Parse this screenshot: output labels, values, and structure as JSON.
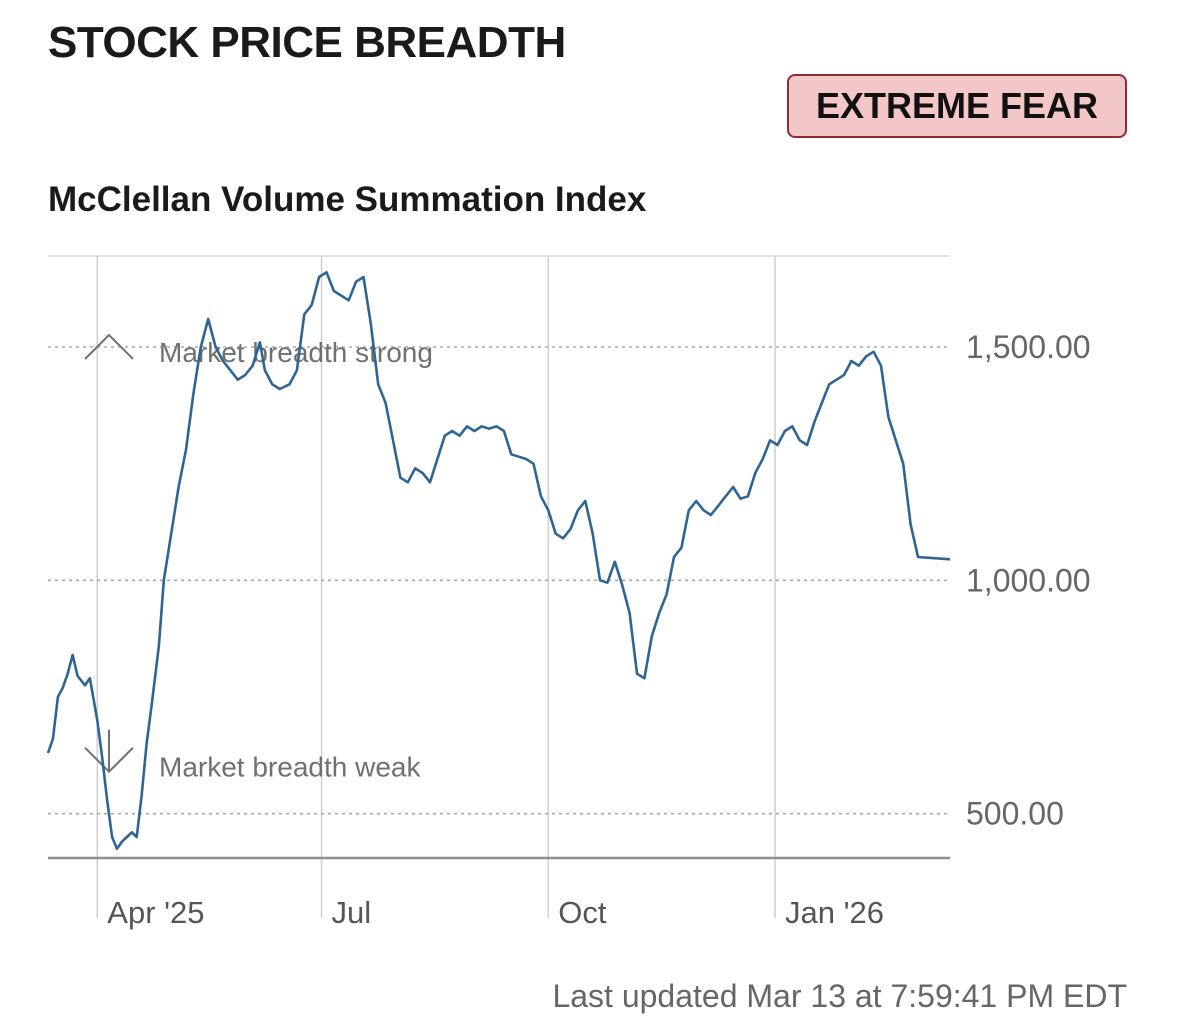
{
  "header": {
    "title": "STOCK PRICE BREADTH",
    "rating": "EXTREME FEAR",
    "rating_colors": {
      "bg": "#f3c7c7",
      "border": "#8e2b35"
    }
  },
  "chart_data": {
    "type": "line",
    "title": "McClellan Volume Summation Index",
    "xlabel": "",
    "ylabel": "",
    "x_tick_labels": [
      "Apr '25",
      "Jul",
      "Oct",
      "Jan '26"
    ],
    "x_tick_dates": [
      "2025-04-01",
      "2025-07-01",
      "2025-10-01",
      "2026-01-01"
    ],
    "y_ticks": [
      500,
      1000,
      1500
    ],
    "y_tick_labels": [
      "500.00",
      "1,000.00",
      "1,500.00"
    ],
    "xlim": [
      "2025-03-12",
      "2026-03-13"
    ],
    "ylim": [
      405,
      1695
    ],
    "grid": true,
    "annotations": [
      {
        "text": "Market breadth strong",
        "icon": "chevron-up-icon",
        "y": 1500
      },
      {
        "text": "Market breadth weak",
        "icon": "chevron-down-icon",
        "y": 500
      }
    ],
    "series": [
      {
        "color": "#2f6593",
        "points": [
          [
            "2025-03-12",
            630
          ],
          [
            "2025-03-14",
            660
          ],
          [
            "2025-03-16",
            750
          ],
          [
            "2025-03-18",
            770
          ],
          [
            "2025-03-20",
            800
          ],
          [
            "2025-03-22",
            840
          ],
          [
            "2025-03-24",
            795
          ],
          [
            "2025-03-27",
            775
          ],
          [
            "2025-03-29",
            790
          ],
          [
            "2025-04-01",
            700
          ],
          [
            "2025-04-03",
            620
          ],
          [
            "2025-04-05",
            530
          ],
          [
            "2025-04-07",
            450
          ],
          [
            "2025-04-09",
            425
          ],
          [
            "2025-04-11",
            440
          ],
          [
            "2025-04-13",
            450
          ],
          [
            "2025-04-15",
            460
          ],
          [
            "2025-04-17",
            450
          ],
          [
            "2025-04-19",
            540
          ],
          [
            "2025-04-21",
            650
          ],
          [
            "2025-04-23",
            730
          ],
          [
            "2025-04-26",
            860
          ],
          [
            "2025-04-28",
            1000
          ],
          [
            "2025-05-01",
            1100
          ],
          [
            "2025-05-04",
            1200
          ],
          [
            "2025-05-07",
            1280
          ],
          [
            "2025-05-10",
            1400
          ],
          [
            "2025-05-13",
            1500
          ],
          [
            "2025-05-16",
            1560
          ],
          [
            "2025-05-19",
            1500
          ],
          [
            "2025-05-22",
            1470
          ],
          [
            "2025-05-25",
            1450
          ],
          [
            "2025-05-28",
            1430
          ],
          [
            "2025-05-31",
            1440
          ],
          [
            "2025-06-03",
            1460
          ],
          [
            "2025-06-06",
            1510
          ],
          [
            "2025-06-08",
            1450
          ],
          [
            "2025-06-11",
            1420
          ],
          [
            "2025-06-14",
            1410
          ],
          [
            "2025-06-18",
            1420
          ],
          [
            "2025-06-21",
            1450
          ],
          [
            "2025-06-24",
            1570
          ],
          [
            "2025-06-27",
            1590
          ],
          [
            "2025-06-30",
            1650
          ],
          [
            "2025-07-03",
            1660
          ],
          [
            "2025-07-06",
            1620
          ],
          [
            "2025-07-09",
            1610
          ],
          [
            "2025-07-12",
            1600
          ],
          [
            "2025-07-15",
            1640
          ],
          [
            "2025-07-18",
            1650
          ],
          [
            "2025-07-21",
            1550
          ],
          [
            "2025-07-24",
            1420
          ],
          [
            "2025-07-27",
            1380
          ],
          [
            "2025-07-30",
            1300
          ],
          [
            "2025-08-02",
            1220
          ],
          [
            "2025-08-05",
            1210
          ],
          [
            "2025-08-08",
            1240
          ],
          [
            "2025-08-11",
            1230
          ],
          [
            "2025-08-14",
            1210
          ],
          [
            "2025-08-17",
            1260
          ],
          [
            "2025-08-20",
            1310
          ],
          [
            "2025-08-23",
            1320
          ],
          [
            "2025-08-26",
            1310
          ],
          [
            "2025-08-29",
            1330
          ],
          [
            "2025-09-01",
            1320
          ],
          [
            "2025-09-04",
            1330
          ],
          [
            "2025-09-07",
            1325
          ],
          [
            "2025-09-10",
            1330
          ],
          [
            "2025-09-13",
            1320
          ],
          [
            "2025-09-16",
            1270
          ],
          [
            "2025-09-19",
            1265
          ],
          [
            "2025-09-22",
            1260
          ],
          [
            "2025-09-25",
            1250
          ],
          [
            "2025-09-28",
            1180
          ],
          [
            "2025-10-01",
            1150
          ],
          [
            "2025-10-04",
            1100
          ],
          [
            "2025-10-07",
            1090
          ],
          [
            "2025-10-10",
            1110
          ],
          [
            "2025-10-13",
            1150
          ],
          [
            "2025-10-16",
            1170
          ],
          [
            "2025-10-19",
            1100
          ],
          [
            "2025-10-22",
            1000
          ],
          [
            "2025-10-25",
            995
          ],
          [
            "2025-10-28",
            1040
          ],
          [
            "2025-10-31",
            990
          ],
          [
            "2025-11-03",
            930
          ],
          [
            "2025-11-06",
            800
          ],
          [
            "2025-11-09",
            790
          ],
          [
            "2025-11-12",
            880
          ],
          [
            "2025-11-15",
            930
          ],
          [
            "2025-11-18",
            970
          ],
          [
            "2025-11-21",
            1050
          ],
          [
            "2025-11-24",
            1070
          ],
          [
            "2025-11-27",
            1150
          ],
          [
            "2025-11-30",
            1170
          ],
          [
            "2025-12-03",
            1150
          ],
          [
            "2025-12-06",
            1140
          ],
          [
            "2025-12-09",
            1160
          ],
          [
            "2025-12-12",
            1180
          ],
          [
            "2025-12-15",
            1200
          ],
          [
            "2025-12-18",
            1175
          ],
          [
            "2025-12-21",
            1180
          ],
          [
            "2025-12-24",
            1230
          ],
          [
            "2025-12-27",
            1260
          ],
          [
            "2025-12-30",
            1300
          ],
          [
            "2026-01-02",
            1290
          ],
          [
            "2026-01-05",
            1320
          ],
          [
            "2026-01-08",
            1330
          ],
          [
            "2026-01-11",
            1300
          ],
          [
            "2026-01-14",
            1290
          ],
          [
            "2026-01-17",
            1340
          ],
          [
            "2026-01-20",
            1380
          ],
          [
            "2026-01-23",
            1420
          ],
          [
            "2026-01-26",
            1430
          ],
          [
            "2026-01-29",
            1440
          ],
          [
            "2026-02-01",
            1470
          ],
          [
            "2026-02-04",
            1460
          ],
          [
            "2026-02-07",
            1480
          ],
          [
            "2026-02-10",
            1490
          ],
          [
            "2026-02-13",
            1460
          ],
          [
            "2026-02-16",
            1350
          ],
          [
            "2026-02-19",
            1300
          ],
          [
            "2026-02-22",
            1250
          ],
          [
            "2026-02-25",
            1120
          ],
          [
            "2026-02-28",
            1050
          ],
          [
            "2026-03-13",
            1045
          ]
        ]
      }
    ]
  },
  "footer": {
    "last_updated": "Last updated Mar 13 at 7:59:41 PM EDT"
  }
}
